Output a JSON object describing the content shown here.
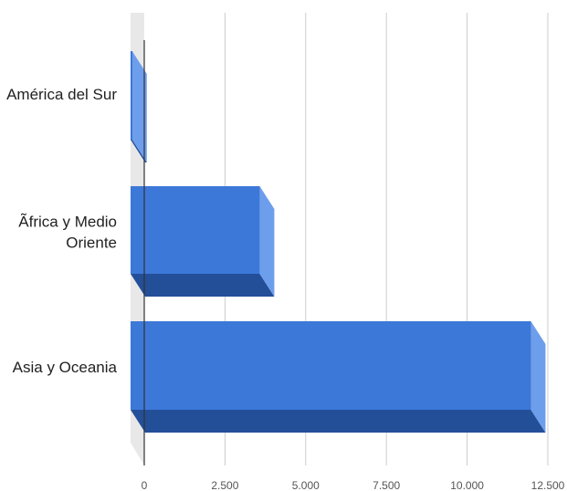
{
  "chart_data": {
    "type": "bar",
    "orientation": "horizontal",
    "style": "3d",
    "categories": [
      [
        "América del Sur"
      ],
      [
        "Ãfrica y Medio",
        "Oriente"
      ],
      [
        "Asia y Oceania"
      ]
    ],
    "values": [
      50,
      4000,
      12400
    ],
    "xlim": [
      0,
      12500
    ],
    "xticks": [
      0,
      2500,
      5000,
      7500,
      10000,
      12500
    ],
    "xtick_labels": [
      "0",
      "2.500",
      "5.000",
      "7.500",
      "10.000",
      "12.500"
    ],
    "grid": true,
    "legend": "none",
    "title": "",
    "xlabel": "",
    "ylabel": "",
    "colors": {
      "bar_front": "#3c78d8",
      "bar_side": "#6d9eeb",
      "bar_bottom": "#234f99",
      "floor": "#e8e8e8",
      "grid": "#cccccc",
      "axis": "#333333"
    }
  }
}
